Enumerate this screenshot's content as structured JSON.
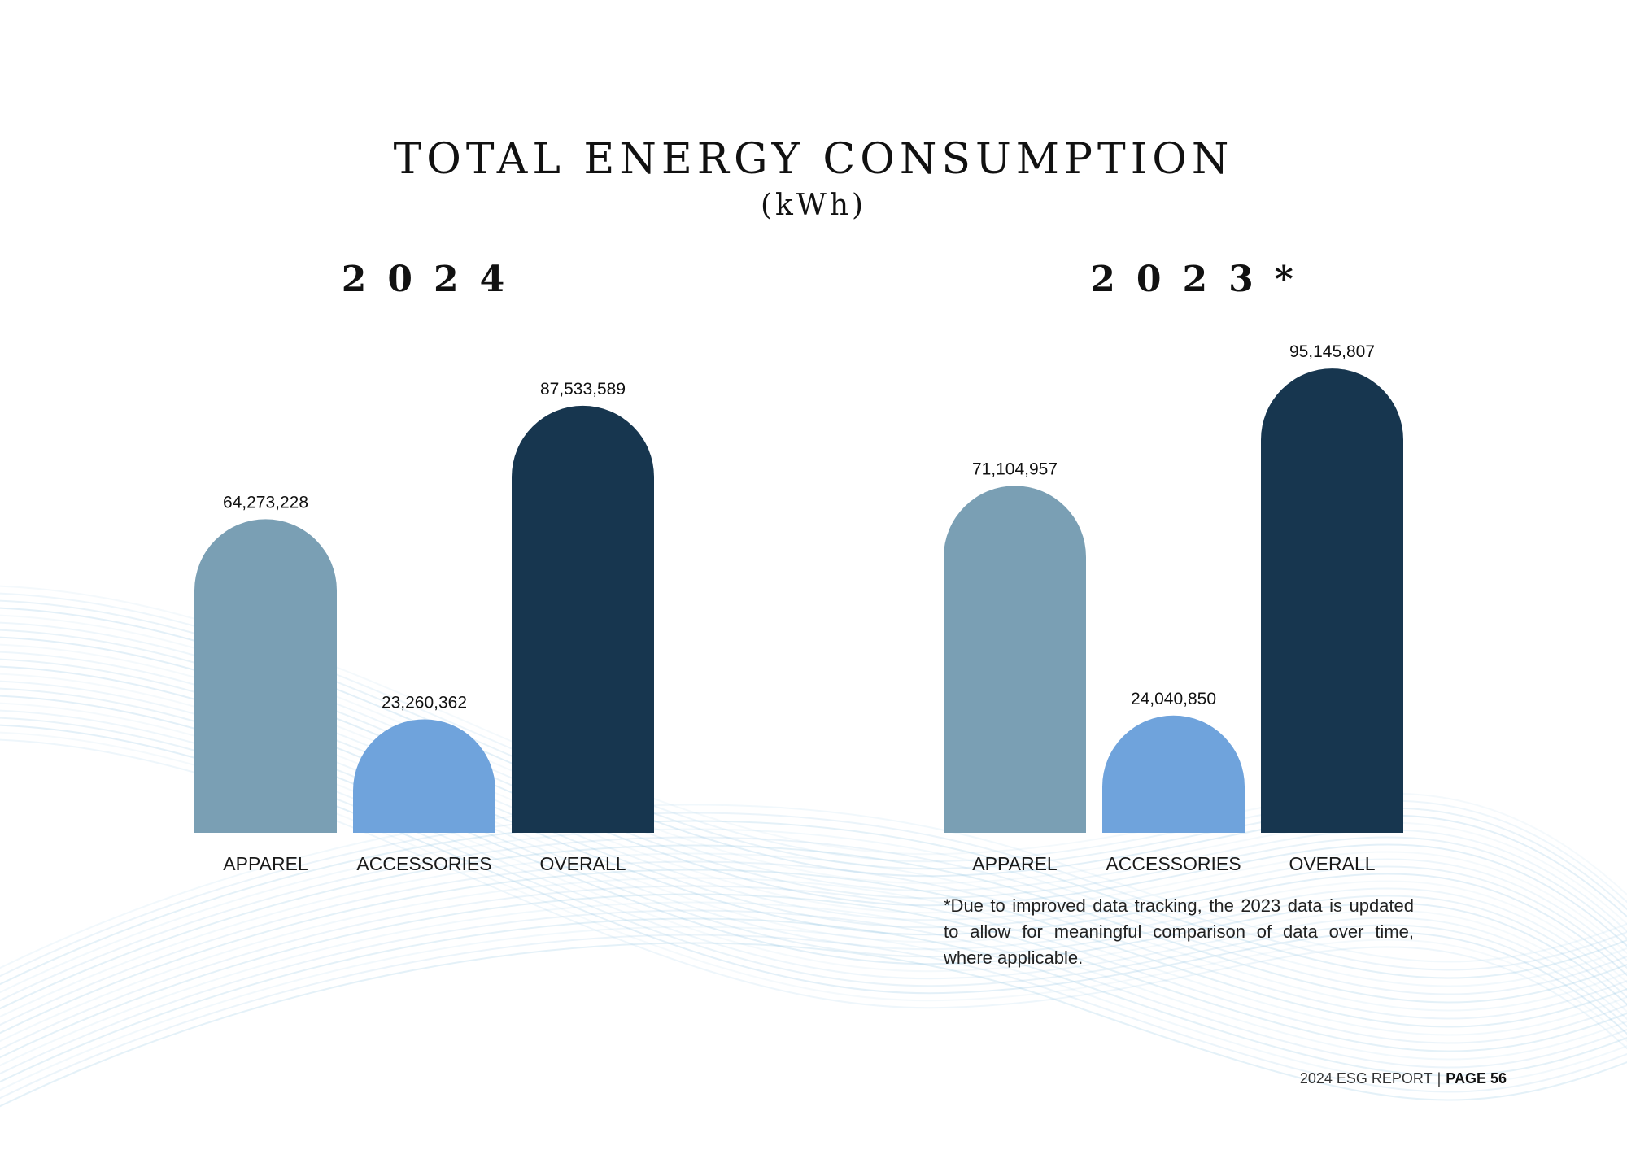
{
  "title": "TOTAL ENERGY CONSUMPTION",
  "subtitle": "(kWh)",
  "footnote": "*Due to improved data tracking, the 2023 data is updated to allow for meaningful comparison of data over time, where applicable.",
  "footer": {
    "report": "2024 ESG REPORT",
    "separator": "|",
    "page": "PAGE 56"
  },
  "colors": {
    "apparel": "#7a9fb4",
    "accessories": "#6fa3dc",
    "overall": "#17364f",
    "text": "#111111",
    "wave": "#8fc3e3"
  },
  "chart_data": [
    {
      "type": "bar",
      "title": "2024",
      "categories": [
        "APPAREL",
        "ACCESSORIES",
        "OVERALL"
      ],
      "values": [
        64273228,
        23260362,
        87533589
      ],
      "value_labels": [
        "64,273,228",
        "23,260,362",
        "87,533,589"
      ],
      "unit": "kWh",
      "ylim": [
        0,
        100000000
      ],
      "xlabel": "",
      "ylabel": "",
      "grid": false
    },
    {
      "type": "bar",
      "title": "2023*",
      "categories": [
        "APPAREL",
        "ACCESSORIES",
        "OVERALL"
      ],
      "values": [
        71104957,
        24040850,
        95145807
      ],
      "value_labels": [
        "71,104,957",
        "24,040,850",
        "95,145,807"
      ],
      "unit": "kWh",
      "ylim": [
        0,
        100000000
      ],
      "xlabel": "",
      "ylabel": "",
      "grid": false
    }
  ]
}
